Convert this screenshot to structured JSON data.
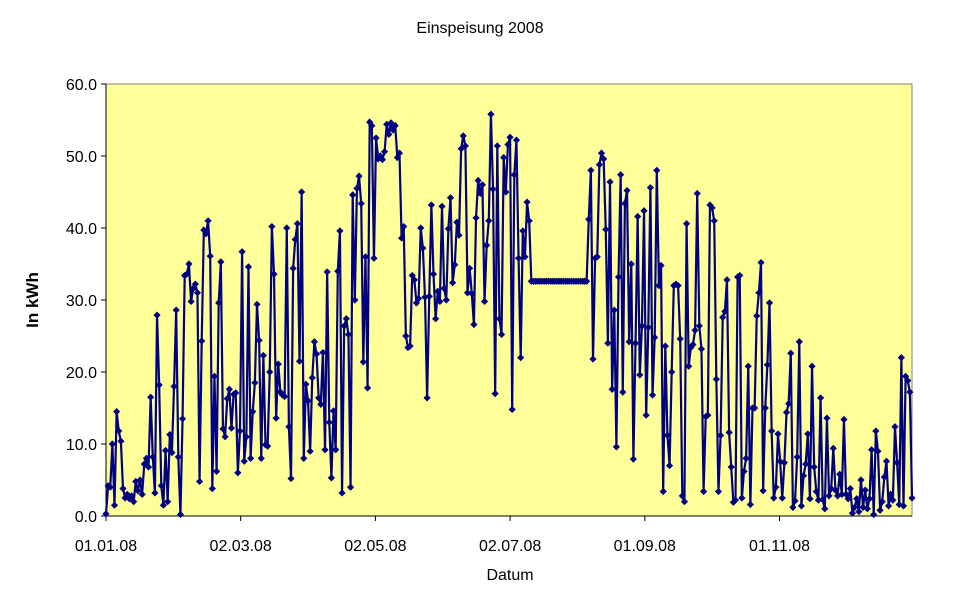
{
  "chart_data": {
    "type": "line",
    "title": "Einspeisung 2008",
    "xlabel": "Datum",
    "ylabel": "In kWh",
    "ylim": [
      0,
      60
    ],
    "y_ticks": [
      "0.0",
      "10.0",
      "20.0",
      "30.0",
      "40.0",
      "50.0",
      "60.0"
    ],
    "x_ticks": [
      "01.01.08",
      "02.03.08",
      "02.05.08",
      "02.07.08",
      "01.09.08",
      "01.11.08"
    ],
    "x_tick_days": [
      0,
      61,
      122,
      183,
      244,
      305
    ],
    "xlim_days": [
      0,
      365
    ],
    "grid": false,
    "legend": "none",
    "colors": {
      "plot_background": "#FFFF99",
      "series": "#000080"
    },
    "series": [
      {
        "values": [
          0.3,
          4.2,
          4.0,
          10.0,
          1.5,
          14.5,
          11.8,
          10.4,
          3.8,
          2.5,
          3.0,
          2.4,
          2.8,
          2.0,
          4.8,
          3.5,
          5.0,
          3.0,
          7.2,
          8.0,
          6.8,
          16.5,
          8.2,
          3.2,
          27.9,
          18.2,
          4.2,
          1.5,
          9.1,
          2.0,
          11.3,
          8.8,
          18.0,
          28.6,
          8.2,
          0.2,
          13.5,
          33.4,
          33.6,
          35.0,
          29.8,
          31.6,
          32.2,
          31.0,
          4.8,
          24.3,
          39.7,
          39.2,
          41.0,
          36.1,
          3.8,
          19.4,
          6.2,
          29.6,
          35.3,
          12.1,
          11.0,
          16.3,
          17.6,
          12.2,
          16.9,
          17.1,
          6.0,
          11.8,
          36.7,
          7.6,
          11.0,
          34.6,
          8.0,
          14.5,
          18.5,
          29.4,
          24.4,
          8.0,
          22.3,
          9.9,
          9.7,
          20.0,
          40.2,
          33.6,
          13.6,
          21.1,
          17.2,
          16.8,
          16.6,
          40.0,
          12.4,
          5.2,
          34.4,
          38.4,
          40.6,
          21.5,
          45.0,
          8.0,
          18.3,
          16.0,
          9.0,
          19.2,
          24.2,
          22.5,
          16.4,
          15.5,
          22.7,
          9.2,
          33.9,
          13.0,
          5.3,
          14.6,
          9.2,
          34.0,
          39.6,
          3.2,
          26.4,
          27.4,
          25.2,
          4.0,
          44.6,
          30.0,
          45.5,
          47.2,
          43.4,
          21.4,
          36.0,
          17.8,
          54.7,
          54.2,
          35.8,
          52.5,
          49.6,
          50.0,
          49.5,
          50.6,
          54.4,
          53.0,
          54.6,
          53.6,
          54.2,
          49.8,
          50.4,
          38.6,
          40.2,
          25.0,
          23.4,
          23.6,
          33.4,
          32.8,
          29.6,
          30.2,
          40.0,
          37.2,
          30.4,
          16.4,
          30.5,
          43.2,
          33.6,
          27.4,
          31.2,
          29.8,
          43.0,
          31.6,
          30.0,
          39.9,
          44.2,
          32.4,
          34.9,
          40.8,
          39.0,
          51.0,
          52.8,
          51.4,
          31.0,
          34.4,
          30.9,
          26.6,
          41.4,
          46.6,
          44.8,
          46.0,
          29.8,
          37.6,
          41.0,
          55.8,
          45.4,
          17.0,
          51.4,
          27.4,
          25.2,
          49.8,
          45.0,
          51.6,
          52.6,
          14.8,
          47.4,
          52.2,
          35.8,
          22.0,
          39.6,
          36.0,
          43.6,
          41.0,
          32.6,
          32.6,
          32.6,
          32.6,
          32.6,
          32.6,
          32.6,
          32.6,
          32.6,
          32.6,
          32.6,
          32.6,
          32.6,
          32.6,
          32.6,
          32.6,
          32.6,
          32.6,
          32.6,
          32.6,
          32.6,
          32.6,
          32.6,
          32.6,
          32.6,
          32.6,
          32.6,
          41.2,
          48.0,
          21.8,
          35.8,
          36.0,
          48.8,
          50.4,
          49.6,
          39.8,
          24.0,
          46.4,
          17.6,
          28.6,
          9.6,
          33.2,
          47.4,
          17.2,
          43.4,
          45.2,
          24.2,
          35.0,
          7.9,
          24.0,
          41.6,
          19.6,
          26.4,
          42.4,
          14.0,
          26.2,
          45.6,
          16.8,
          24.8,
          48.0,
          32.0,
          34.8,
          3.4,
          23.6,
          11.2,
          7.0,
          20.0,
          32.0,
          32.2,
          32.0,
          24.6,
          2.8,
          2.0,
          40.6,
          20.8,
          23.4,
          23.8,
          25.8,
          44.8,
          26.4,
          23.2,
          3.4,
          13.8,
          14.0,
          43.2,
          42.8,
          41.0,
          19.0,
          3.4,
          11.2,
          27.6,
          28.4,
          32.8,
          11.6,
          6.8,
          1.9,
          2.2,
          33.2,
          33.4,
          2.5,
          6.2,
          8.0,
          20.8,
          1.6,
          15.0,
          15.0,
          27.8,
          31.0,
          35.2,
          3.5,
          15.0,
          21.0,
          29.6,
          11.8,
          2.5,
          4.0,
          11.4,
          7.6,
          2.5,
          7.4,
          14.4,
          15.6,
          22.6,
          1.2,
          2.1,
          8.2,
          24.2,
          1.4,
          5.6,
          7.2,
          11.4,
          2.4,
          20.8,
          6.8,
          3.4,
          2.2,
          16.4,
          2.3,
          1.0,
          13.6,
          2.8,
          3.8,
          9.4,
          3.6,
          2.8,
          5.8,
          3.0,
          13.4,
          3.0,
          2.4,
          3.8,
          0.4,
          1.2,
          2.4,
          0.6,
          5.0,
          1.2,
          3.6,
          1.0,
          2.4,
          9.2,
          0.2,
          11.8,
          9.0,
          0.8,
          2.0,
          5.4,
          7.6,
          1.4,
          3.0,
          2.2,
          12.4,
          7.4,
          1.6,
          22.0,
          1.4,
          19.4,
          18.8,
          17.2,
          2.5
        ]
      }
    ]
  }
}
